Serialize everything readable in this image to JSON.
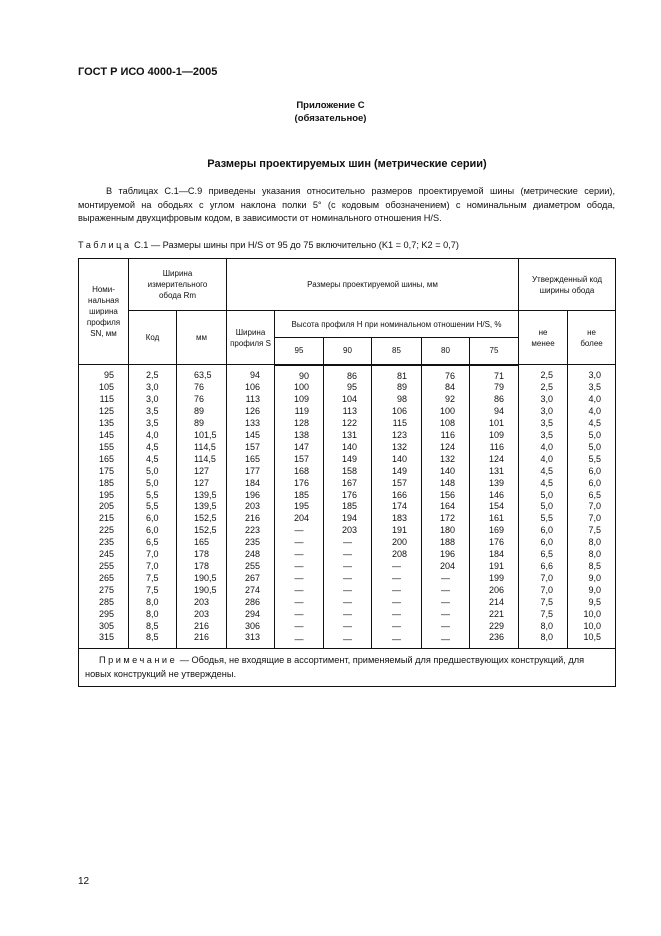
{
  "header": {
    "doc_id": "ГОСТ Р ИСО 4000-1—2005"
  },
  "annex": {
    "label": "Приложение С",
    "status": "(обязательное)"
  },
  "section_title": "Размеры проектируемых шин (метрические серии)",
  "intro": "В таблицах С.1—С.9 приведены указания относительно размеров проектируемой шины (метрические серии), монтируемой на ободьях с углом наклона полки 5° (с кодовым обозначением) с номинальным диаметром обода, выраженным двухцифровым кодом, в зависимости от номинального отношения H/S.",
  "caption": {
    "prefix": "Таблица",
    "text": "С.1 — Размеры шины при H/S от 95 до 75 включительно (K1 = 0,7; K2 = 0,7)"
  },
  "table": {
    "headers": {
      "nominal_width": "Номи-нальная ширина профиля SN, мм",
      "rim_width": "Ширина измерительного обода Rm",
      "code": "Код",
      "mm": "мм",
      "design_sizes": "Размеры проектируемой шины, мм",
      "section_width": "Ширина профиля S",
      "height": "Высота профиля H при номинальном отношении H/S, %",
      "ratios": [
        "95",
        "90",
        "85",
        "80",
        "75"
      ],
      "approved": "Утвержденный код ширины обода",
      "min": "не менее",
      "max": "не более"
    },
    "rows": [
      [
        "95",
        "2,5",
        "63,5",
        "94",
        "90",
        "86",
        "81",
        "76",
        "71",
        "2,5",
        "3,0"
      ],
      [
        "105",
        "3,0",
        "76",
        "106",
        "100",
        "95",
        "89",
        "84",
        "79",
        "2,5",
        "3,5"
      ],
      [
        "115",
        "3,0",
        "76",
        "113",
        "109",
        "104",
        "98",
        "92",
        "86",
        "3,0",
        "4,0"
      ],
      [
        "125",
        "3,5",
        "89",
        "126",
        "119",
        "113",
        "106",
        "100",
        "94",
        "3,0",
        "4,0"
      ],
      [
        "135",
        "3,5",
        "89",
        "133",
        "128",
        "122",
        "115",
        "108",
        "101",
        "3,5",
        "4,5"
      ],
      [
        "145",
        "4,0",
        "101,5",
        "145",
        "138",
        "131",
        "123",
        "116",
        "109",
        "3,5",
        "5,0"
      ],
      [
        "155",
        "4,5",
        "114,5",
        "157",
        "147",
        "140",
        "132",
        "124",
        "116",
        "4,0",
        "5,0"
      ],
      [
        "165",
        "4,5",
        "114,5",
        "165",
        "157",
        "149",
        "140",
        "132",
        "124",
        "4,0",
        "5,5"
      ],
      [
        "175",
        "5,0",
        "127",
        "177",
        "168",
        "158",
        "149",
        "140",
        "131",
        "4,5",
        "6,0"
      ],
      [
        "185",
        "5,0",
        "127",
        "184",
        "176",
        "167",
        "157",
        "148",
        "139",
        "4,5",
        "6,0"
      ],
      [
        "195",
        "5,5",
        "139,5",
        "196",
        "185",
        "176",
        "166",
        "156",
        "146",
        "5,0",
        "6,5"
      ],
      [
        "205",
        "5,5",
        "139,5",
        "203",
        "195",
        "185",
        "174",
        "164",
        "154",
        "5,0",
        "7,0"
      ],
      [
        "215",
        "6,0",
        "152,5",
        "216",
        "204",
        "194",
        "183",
        "172",
        "161",
        "5,5",
        "7,0"
      ],
      [
        "225",
        "6,0",
        "152,5",
        "223",
        "—",
        "203",
        "191",
        "180",
        "169",
        "6,0",
        "7,5"
      ],
      [
        "235",
        "6,5",
        "165",
        "235",
        "—",
        "—",
        "200",
        "188",
        "176",
        "6,0",
        "8,0"
      ],
      [
        "245",
        "7,0",
        "178",
        "248",
        "—",
        "—",
        "208",
        "196",
        "184",
        "6,5",
        "8,0"
      ],
      [
        "255",
        "7,0",
        "178",
        "255",
        "—",
        "—",
        "—",
        "204",
        "191",
        "6,6",
        "8,5"
      ],
      [
        "265",
        "7,5",
        "190,5",
        "267",
        "—",
        "—",
        "—",
        "—",
        "199",
        "7,0",
        "9,0"
      ],
      [
        "275",
        "7,5",
        "190,5",
        "274",
        "—",
        "—",
        "—",
        "—",
        "206",
        "7,0",
        "9,0"
      ],
      [
        "285",
        "8,0",
        "203",
        "286",
        "—",
        "—",
        "—",
        "—",
        "214",
        "7,5",
        "9,5"
      ],
      [
        "295",
        "8,0",
        "203",
        "294",
        "—",
        "—",
        "—",
        "—",
        "221",
        "7,5",
        "10,0"
      ],
      [
        "305",
        "8,5",
        "216",
        "306",
        "—",
        "—",
        "—",
        "—",
        "229",
        "8,0",
        "10,0"
      ],
      [
        "315",
        "8,5",
        "216",
        "313",
        "—",
        "—",
        "—",
        "—",
        "236",
        "8,0",
        "10,5"
      ]
    ],
    "note": {
      "prefix": "Примечание",
      "text": "— Ободья, не входящие в ассортимент, применяемый для предшествующих конструкций, для новых конструкций не утверждены."
    }
  },
  "footer": {
    "page_number": "12"
  }
}
